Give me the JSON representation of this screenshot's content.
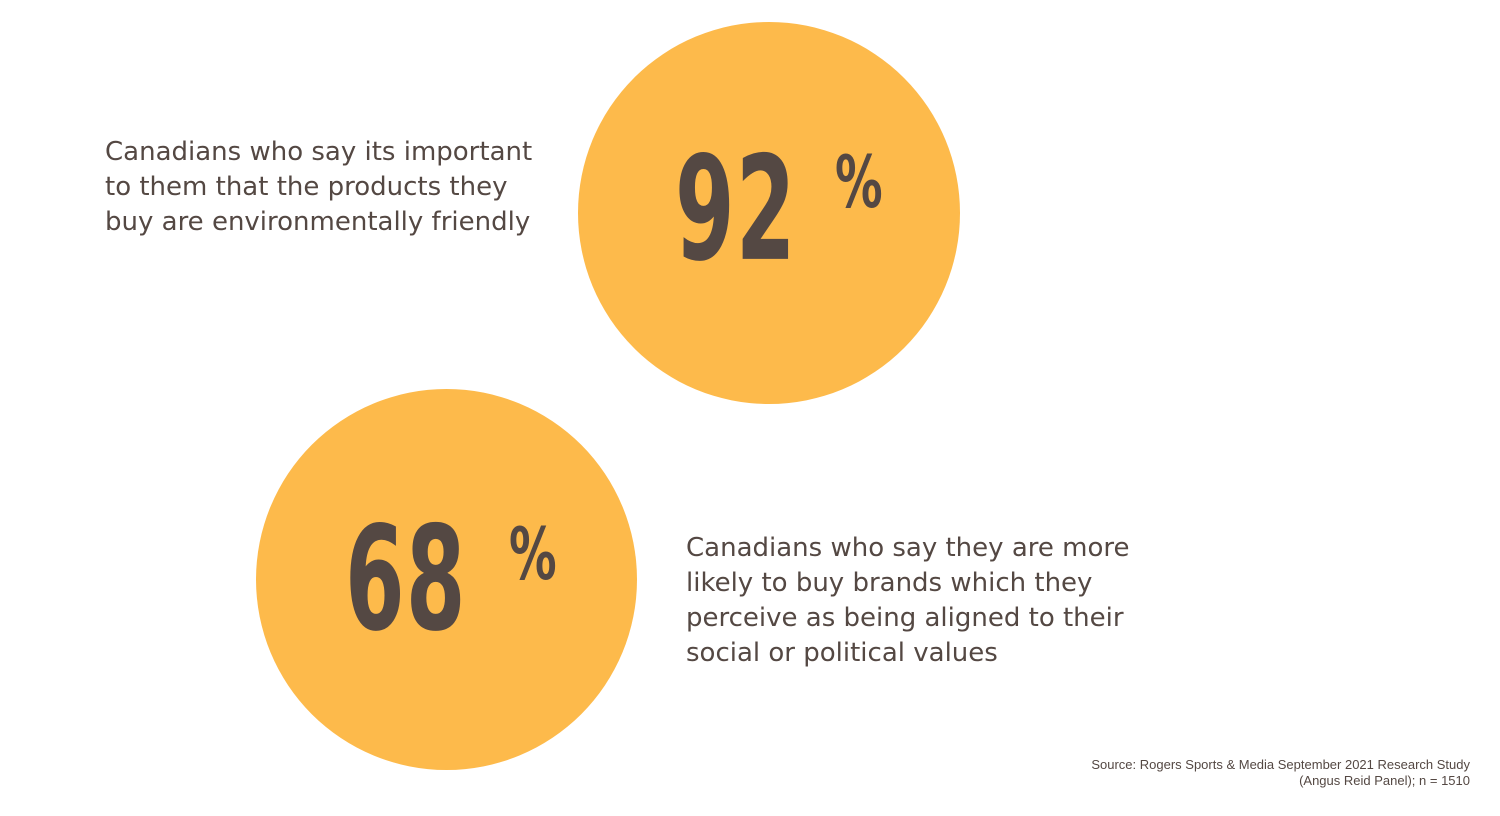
{
  "stats": [
    {
      "value": "92",
      "unit": "%",
      "description_lines": [
        "Canadians who say its important",
        "to them that the products they",
        "buy are environmentally friendly"
      ]
    },
    {
      "value": "68",
      "unit": "%",
      "description_lines": [
        "Canadians who say they are more",
        "likely to buy brands which they",
        "perceive as being aligned to their",
        "social or political values"
      ]
    }
  ],
  "source": {
    "line1": "Source: Rogers Sports & Media September 2021 Research Study",
    "line2": "(Angus Reid Panel); n = 1510"
  },
  "colors": {
    "circle_fill": "#fdba4b",
    "text": "#544843",
    "background": "#ffffff"
  }
}
